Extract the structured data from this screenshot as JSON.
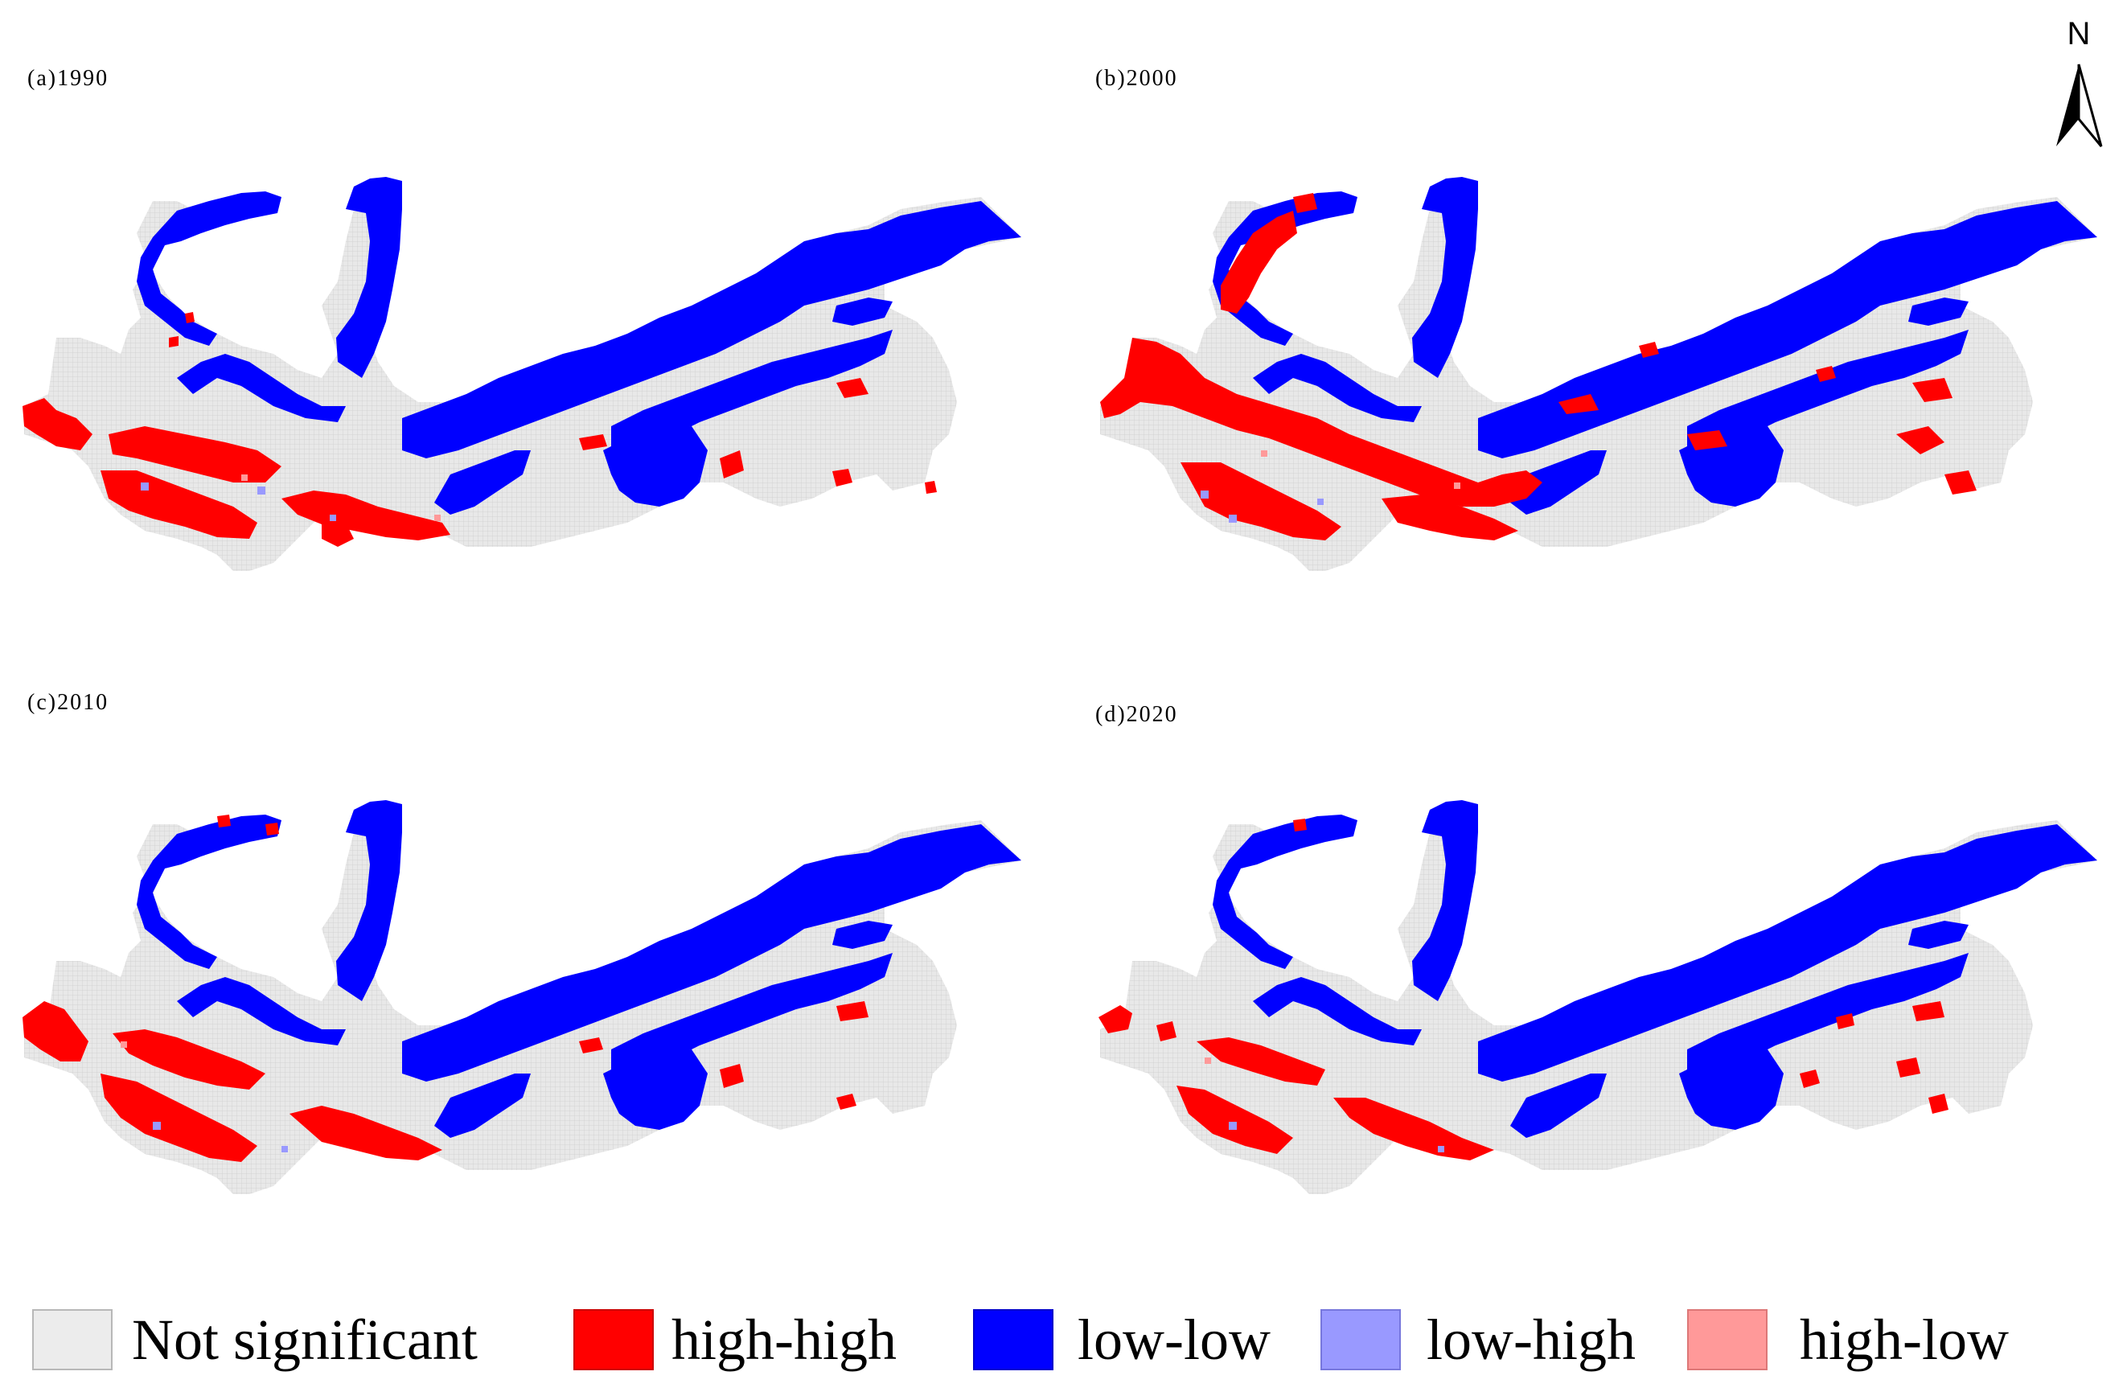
{
  "panels": [
    {
      "label": "(a)1990"
    },
    {
      "label": "(b)2000"
    },
    {
      "label": "(c)2010"
    },
    {
      "label": "(d)2020"
    }
  ],
  "north_arrow": {
    "letter": "N"
  },
  "legend": [
    {
      "label": "Not significant",
      "color": "#ececec",
      "border": "#b8b8b8"
    },
    {
      "label": "high-high",
      "color": "#ff0000",
      "border": "#cc0000"
    },
    {
      "label": "low-low",
      "color": "#0000ff",
      "border": "#0000cc"
    },
    {
      "label": "low-high",
      "color": "#9999ff",
      "border": "#7777dd"
    },
    {
      "label": "high-low",
      "color": "#ff9999",
      "border": "#dd7777"
    }
  ],
  "colors": {
    "not_significant": "#e6e6e6",
    "high_high": "#ff0000",
    "low_low": "#0000ff",
    "low_high": "#9999ff",
    "high_low": "#ff9999"
  }
}
